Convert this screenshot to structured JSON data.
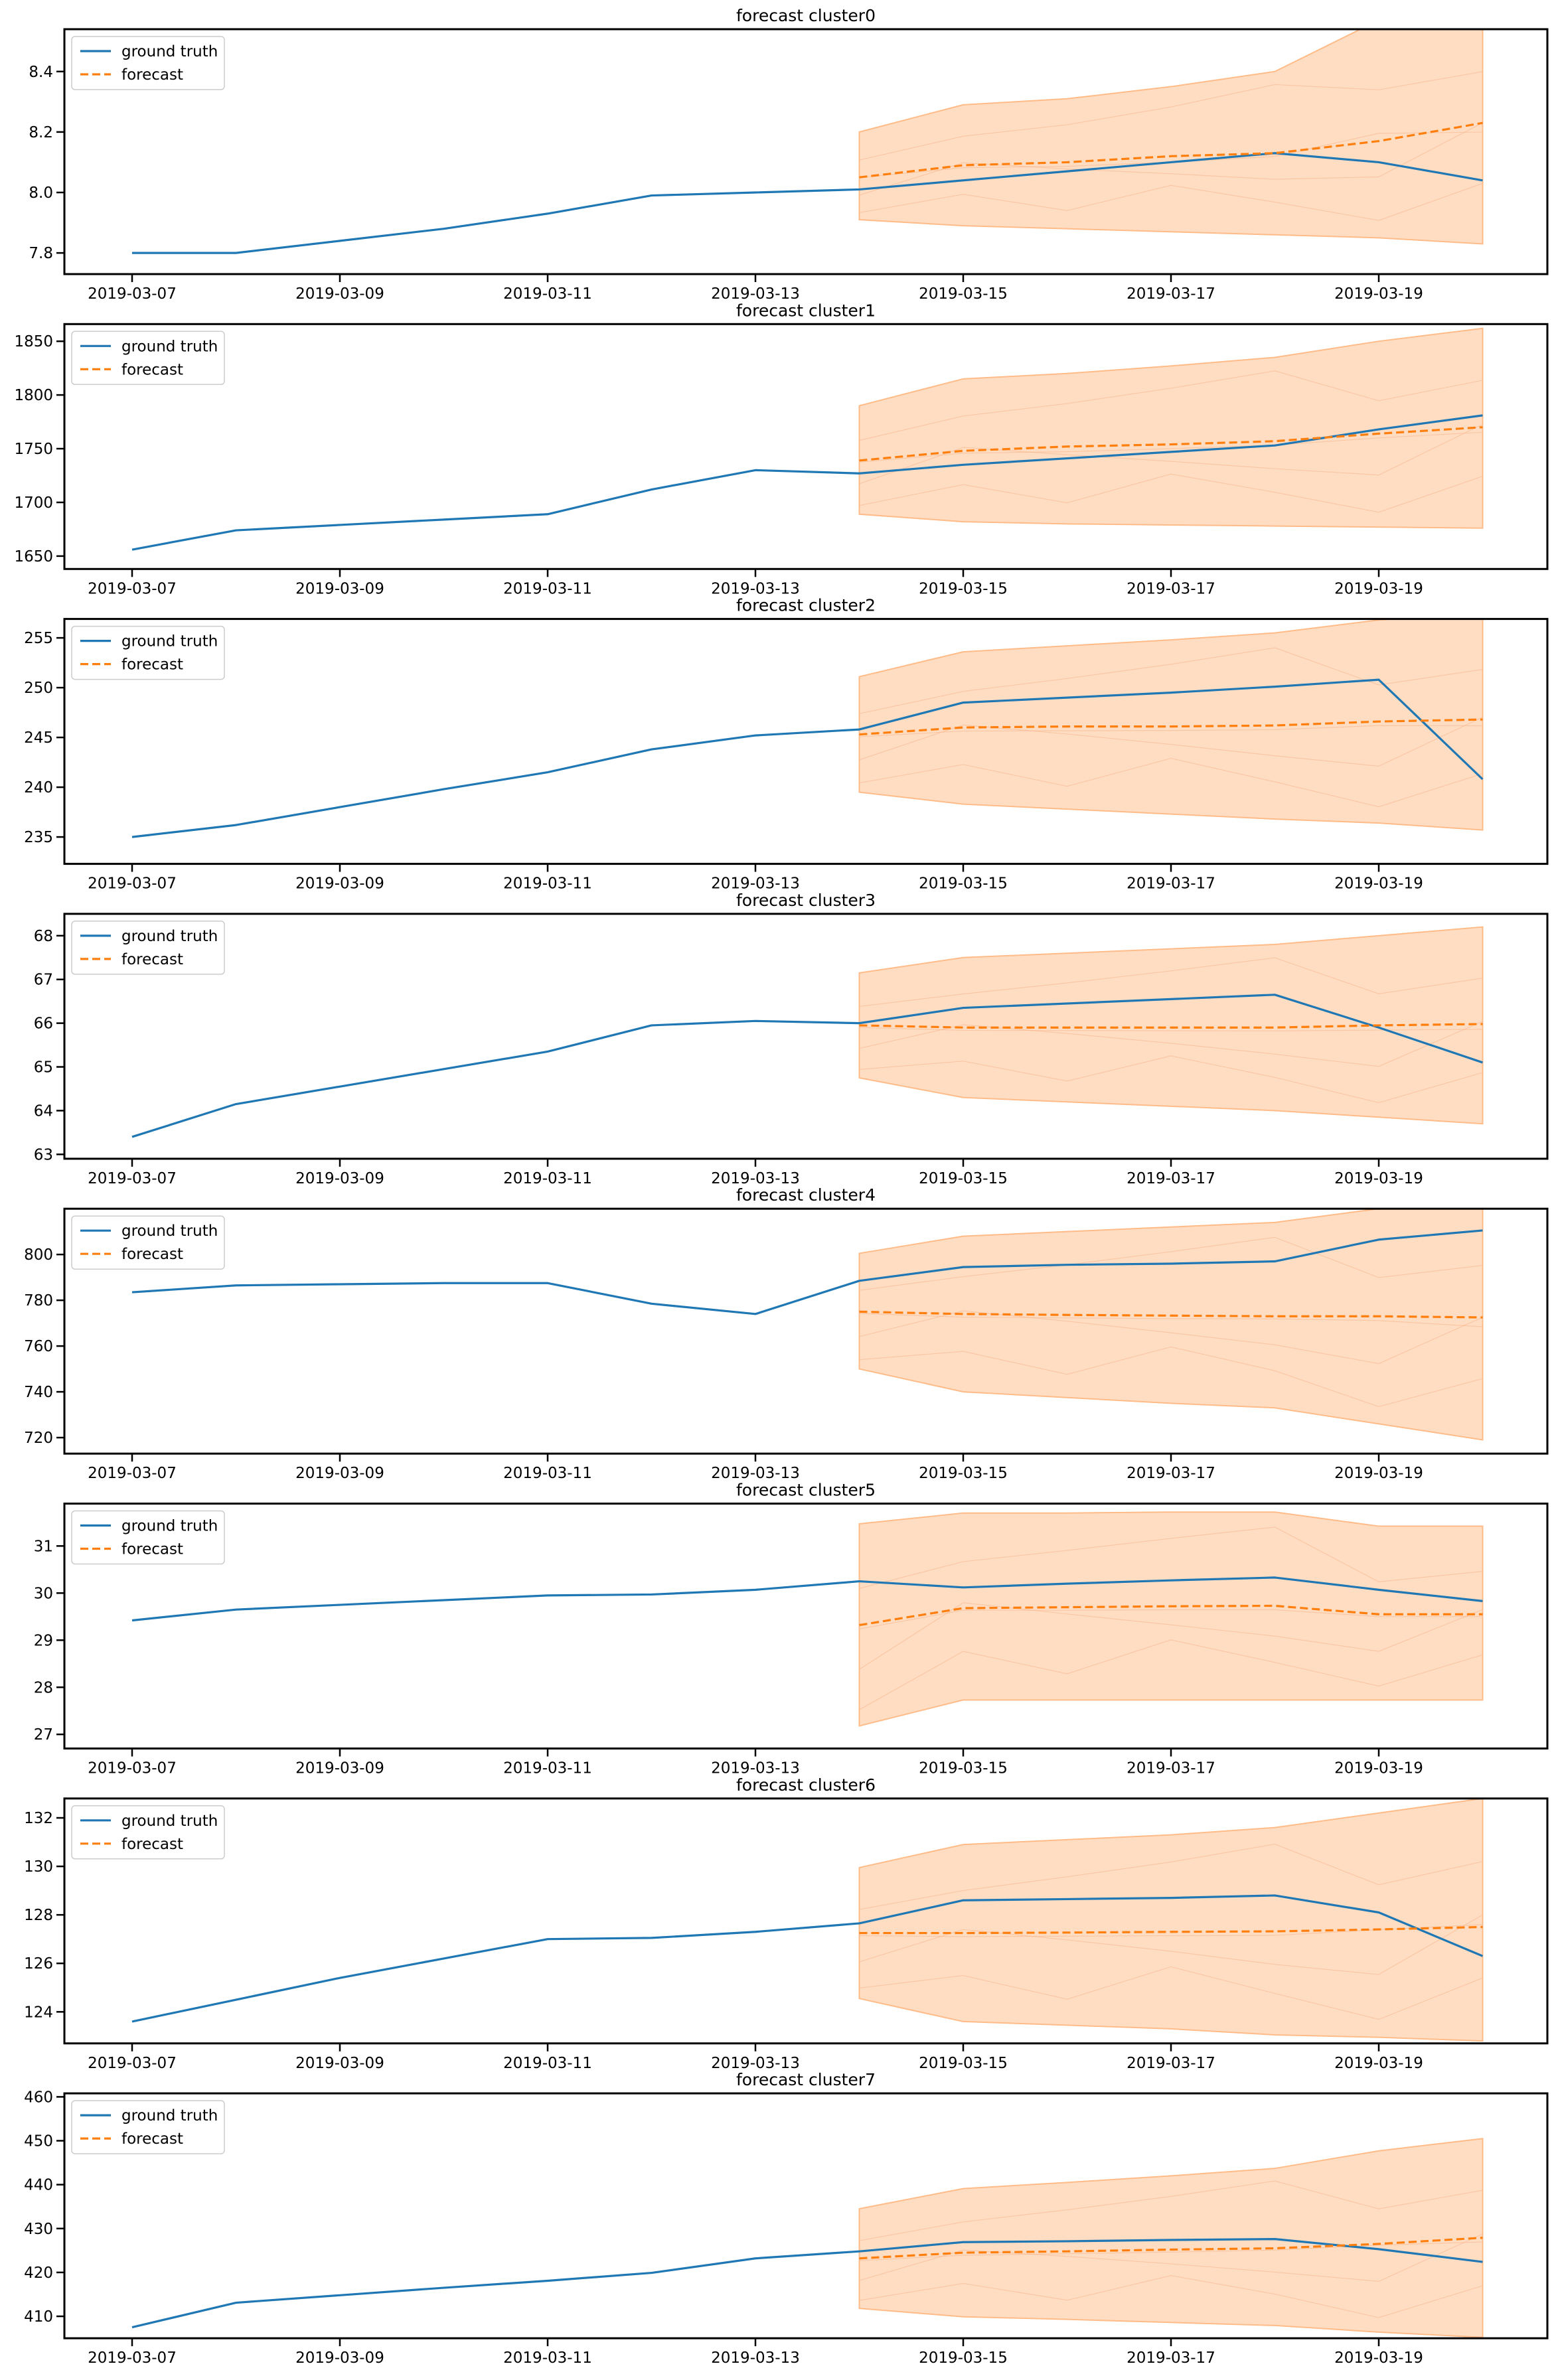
{
  "chart_data": [
    {
      "type": "line",
      "title": "forecast cluster0",
      "x_ticks": [
        "2019-03-07",
        "2019-03-09",
        "2019-03-11",
        "2019-03-13",
        "2019-03-15",
        "2019-03-17",
        "2019-03-19"
      ],
      "y_ticks": [
        "7.8",
        "8.0",
        "8.2",
        "8.4"
      ],
      "ylim": [
        7.73,
        8.54
      ],
      "legend": {
        "placement": "top-left",
        "entries": [
          "ground truth",
          "forecast"
        ]
      },
      "ground_truth": {
        "x": [
          "2019-03-07",
          "2019-03-08",
          "2019-03-09",
          "2019-03-10",
          "2019-03-11",
          "2019-03-12",
          "2019-03-13",
          "2019-03-14",
          "2019-03-15",
          "2019-03-16",
          "2019-03-17",
          "2019-03-18",
          "2019-03-19",
          "2019-03-20"
        ],
        "values": [
          7.8,
          7.8,
          7.84,
          7.88,
          7.93,
          7.99,
          8.0,
          8.01,
          8.04,
          8.07,
          8.1,
          8.13,
          8.1,
          8.04
        ]
      },
      "forecast": {
        "x": [
          "2019-03-14",
          "2019-03-15",
          "2019-03-16",
          "2019-03-17",
          "2019-03-18",
          "2019-03-19",
          "2019-03-20"
        ],
        "values": [
          8.05,
          8.09,
          8.1,
          8.12,
          8.13,
          8.17,
          8.23
        ]
      },
      "band_upper": [
        8.2,
        8.29,
        8.31,
        8.35,
        8.4,
        8.57,
        8.6
      ],
      "band_lower": [
        7.91,
        7.89,
        7.88,
        7.87,
        7.86,
        7.85,
        7.83
      ]
    },
    {
      "type": "line",
      "title": "forecast cluster1",
      "x_ticks": [
        "2019-03-07",
        "2019-03-09",
        "2019-03-11",
        "2019-03-13",
        "2019-03-15",
        "2019-03-17",
        "2019-03-19"
      ],
      "y_ticks": [
        "1650",
        "1700",
        "1750",
        "1800",
        "1850"
      ],
      "ylim": [
        1638,
        1866
      ],
      "legend": {
        "placement": "top-left",
        "entries": [
          "ground truth",
          "forecast"
        ]
      },
      "ground_truth": {
        "x": [
          "2019-03-07",
          "2019-03-08",
          "2019-03-09",
          "2019-03-10",
          "2019-03-11",
          "2019-03-12",
          "2019-03-13",
          "2019-03-14",
          "2019-03-15",
          "2019-03-16",
          "2019-03-17",
          "2019-03-18",
          "2019-03-19",
          "2019-03-20"
        ],
        "values": [
          1656,
          1674,
          1679,
          1684,
          1689,
          1712,
          1730,
          1727,
          1735,
          1741,
          1747,
          1753,
          1768,
          1781
        ]
      },
      "forecast": {
        "x": [
          "2019-03-14",
          "2019-03-15",
          "2019-03-16",
          "2019-03-17",
          "2019-03-18",
          "2019-03-19",
          "2019-03-20"
        ],
        "values": [
          1739,
          1748,
          1752,
          1754,
          1757,
          1764,
          1770
        ]
      },
      "band_upper": [
        1790,
        1815,
        1820,
        1827,
        1835,
        1850,
        1862
      ],
      "band_lower": [
        1689,
        1682,
        1680,
        1679,
        1678,
        1677,
        1676
      ]
    },
    {
      "type": "line",
      "title": "forecast cluster2",
      "x_ticks": [
        "2019-03-07",
        "2019-03-09",
        "2019-03-11",
        "2019-03-13",
        "2019-03-15",
        "2019-03-17",
        "2019-03-19"
      ],
      "y_ticks": [
        "235",
        "240",
        "245",
        "250",
        "255"
      ],
      "ylim": [
        232.3,
        256.9
      ],
      "legend": {
        "placement": "top-left",
        "entries": [
          "ground truth",
          "forecast"
        ]
      },
      "ground_truth": {
        "x": [
          "2019-03-07",
          "2019-03-08",
          "2019-03-09",
          "2019-03-10",
          "2019-03-11",
          "2019-03-12",
          "2019-03-13",
          "2019-03-14",
          "2019-03-15",
          "2019-03-16",
          "2019-03-17",
          "2019-03-18",
          "2019-03-19",
          "2019-03-20"
        ],
        "values": [
          235.0,
          236.2,
          238.0,
          239.8,
          241.5,
          243.8,
          245.2,
          245.8,
          248.5,
          249.0,
          249.5,
          250.1,
          250.8,
          240.8
        ]
      },
      "forecast": {
        "x": [
          "2019-03-14",
          "2019-03-15",
          "2019-03-16",
          "2019-03-17",
          "2019-03-18",
          "2019-03-19",
          "2019-03-20"
        ],
        "values": [
          245.3,
          246.0,
          246.1,
          246.1,
          246.2,
          246.6,
          246.8
        ]
      },
      "band_upper": [
        251.1,
        253.6,
        254.2,
        254.8,
        255.5,
        256.8,
        257.5
      ],
      "band_lower": [
        239.5,
        238.3,
        237.8,
        237.3,
        236.8,
        236.4,
        235.7
      ]
    },
    {
      "type": "line",
      "title": "forecast cluster3",
      "x_ticks": [
        "2019-03-07",
        "2019-03-09",
        "2019-03-11",
        "2019-03-13",
        "2019-03-15",
        "2019-03-17",
        "2019-03-19"
      ],
      "y_ticks": [
        "63",
        "64",
        "65",
        "66",
        "67",
        "68"
      ],
      "ylim": [
        62.9,
        68.5
      ],
      "legend": {
        "placement": "top-left",
        "entries": [
          "ground truth",
          "forecast"
        ]
      },
      "ground_truth": {
        "x": [
          "2019-03-07",
          "2019-03-08",
          "2019-03-09",
          "2019-03-10",
          "2019-03-11",
          "2019-03-12",
          "2019-03-13",
          "2019-03-14",
          "2019-03-15",
          "2019-03-16",
          "2019-03-17",
          "2019-03-18",
          "2019-03-19",
          "2019-03-20"
        ],
        "values": [
          63.4,
          64.15,
          64.55,
          64.95,
          65.35,
          65.95,
          66.05,
          66.0,
          66.35,
          66.45,
          66.55,
          66.65,
          65.9,
          65.1
        ]
      },
      "forecast": {
        "x": [
          "2019-03-14",
          "2019-03-15",
          "2019-03-16",
          "2019-03-17",
          "2019-03-18",
          "2019-03-19",
          "2019-03-20"
        ],
        "values": [
          65.95,
          65.9,
          65.9,
          65.9,
          65.9,
          65.95,
          65.98
        ]
      },
      "band_upper": [
        67.15,
        67.5,
        67.6,
        67.7,
        67.8,
        68.0,
        68.2
      ],
      "band_lower": [
        64.75,
        64.3,
        64.2,
        64.1,
        64.0,
        63.85,
        63.7
      ]
    },
    {
      "type": "line",
      "title": "forecast cluster4",
      "x_ticks": [
        "2019-03-07",
        "2019-03-09",
        "2019-03-11",
        "2019-03-13",
        "2019-03-15",
        "2019-03-17",
        "2019-03-19"
      ],
      "y_ticks": [
        "720",
        "740",
        "760",
        "780",
        "800"
      ],
      "ylim": [
        713,
        820
      ],
      "legend": {
        "placement": "top-left",
        "entries": [
          "ground truth",
          "forecast"
        ]
      },
      "ground_truth": {
        "x": [
          "2019-03-07",
          "2019-03-08",
          "2019-03-09",
          "2019-03-10",
          "2019-03-11",
          "2019-03-12",
          "2019-03-13",
          "2019-03-14",
          "2019-03-15",
          "2019-03-16",
          "2019-03-17",
          "2019-03-18",
          "2019-03-19",
          "2019-03-20"
        ],
        "values": [
          783.5,
          786.5,
          787,
          787.5,
          787.5,
          778.5,
          774.0,
          788.5,
          794.5,
          795.5,
          796,
          797,
          806.5,
          810.5
        ]
      },
      "forecast": {
        "x": [
          "2019-03-14",
          "2019-03-15",
          "2019-03-16",
          "2019-03-17",
          "2019-03-18",
          "2019-03-19",
          "2019-03-20"
        ],
        "values": [
          775,
          774,
          773.6,
          773.3,
          773,
          773,
          772.5
        ]
      },
      "band_upper": [
        800.5,
        808,
        810,
        812,
        814,
        820,
        822
      ],
      "band_lower": [
        750,
        740,
        737.5,
        735,
        733,
        726,
        719
      ]
    },
    {
      "type": "line",
      "title": "forecast cluster5",
      "x_ticks": [
        "2019-03-07",
        "2019-03-09",
        "2019-03-11",
        "2019-03-13",
        "2019-03-15",
        "2019-03-17",
        "2019-03-19"
      ],
      "y_ticks": [
        "27",
        "28",
        "29",
        "30",
        "31"
      ],
      "ylim": [
        26.7,
        31.9
      ],
      "legend": {
        "placement": "top-left",
        "entries": [
          "ground truth",
          "forecast"
        ]
      },
      "ground_truth": {
        "x": [
          "2019-03-07",
          "2019-03-08",
          "2019-03-09",
          "2019-03-10",
          "2019-03-11",
          "2019-03-12",
          "2019-03-13",
          "2019-03-14",
          "2019-03-15",
          "2019-03-16",
          "2019-03-17",
          "2019-03-18",
          "2019-03-19",
          "2019-03-20"
        ],
        "values": [
          29.42,
          29.65,
          29.75,
          29.85,
          29.95,
          29.97,
          30.07,
          30.25,
          30.12,
          30.2,
          30.27,
          30.33,
          30.07,
          29.83
        ]
      },
      "forecast": {
        "x": [
          "2019-03-14",
          "2019-03-15",
          "2019-03-16",
          "2019-03-17",
          "2019-03-18",
          "2019-03-19",
          "2019-03-20"
        ],
        "values": [
          29.32,
          29.68,
          29.7,
          29.72,
          29.73,
          29.55,
          29.55
        ]
      },
      "band_upper": [
        31.47,
        31.7,
        31.7,
        31.72,
        31.72,
        31.42,
        31.42
      ],
      "band_lower": [
        27.18,
        27.73,
        27.73,
        27.73,
        27.73,
        27.73,
        27.73
      ]
    },
    {
      "type": "line",
      "title": "forecast cluster6",
      "x_ticks": [
        "2019-03-07",
        "2019-03-09",
        "2019-03-11",
        "2019-03-13",
        "2019-03-15",
        "2019-03-17",
        "2019-03-19"
      ],
      "y_ticks": [
        "124",
        "126",
        "128",
        "130",
        "132"
      ],
      "ylim": [
        122.7,
        132.8
      ],
      "legend": {
        "placement": "top-left",
        "entries": [
          "ground truth",
          "forecast"
        ]
      },
      "ground_truth": {
        "x": [
          "2019-03-07",
          "2019-03-08",
          "2019-03-09",
          "2019-03-10",
          "2019-03-11",
          "2019-03-12",
          "2019-03-13",
          "2019-03-14",
          "2019-03-15",
          "2019-03-16",
          "2019-03-17",
          "2019-03-18",
          "2019-03-19",
          "2019-03-20"
        ],
        "values": [
          123.6,
          124.5,
          125.4,
          126.2,
          127.0,
          127.05,
          127.3,
          127.65,
          128.6,
          128.65,
          128.7,
          128.8,
          128.1,
          126.3
        ]
      },
      "forecast": {
        "x": [
          "2019-03-14",
          "2019-03-15",
          "2019-03-16",
          "2019-03-17",
          "2019-03-18",
          "2019-03-19",
          "2019-03-20"
        ],
        "values": [
          127.25,
          127.25,
          127.27,
          127.3,
          127.32,
          127.4,
          127.5
        ]
      },
      "band_upper": [
        129.95,
        130.9,
        131.1,
        131.3,
        131.6,
        132.2,
        132.8
      ],
      "band_lower": [
        124.55,
        123.6,
        123.45,
        123.3,
        123.05,
        122.95,
        122.8
      ]
    },
    {
      "type": "line",
      "title": "forecast cluster7",
      "x_ticks": [
        "2019-03-07",
        "2019-03-09",
        "2019-03-11",
        "2019-03-13",
        "2019-03-15",
        "2019-03-17",
        "2019-03-19"
      ],
      "y_ticks": [
        "410",
        "420",
        "430",
        "440",
        "450",
        "460"
      ],
      "ylim": [
        405,
        460.8
      ],
      "legend": {
        "placement": "top-left",
        "entries": [
          "ground truth",
          "forecast"
        ]
      },
      "ground_truth": {
        "x": [
          "2019-03-07",
          "2019-03-08",
          "2019-03-09",
          "2019-03-10",
          "2019-03-11",
          "2019-03-12",
          "2019-03-13",
          "2019-03-14",
          "2019-03-15",
          "2019-03-16",
          "2019-03-17",
          "2019-03-18",
          "2019-03-19",
          "2019-03-20"
        ],
        "values": [
          407.5,
          413.1,
          414.8,
          416.5,
          418.1,
          419.9,
          423.2,
          424.8,
          426.9,
          427.1,
          427.4,
          427.6,
          425.3,
          422.4
        ]
      },
      "forecast": {
        "x": [
          "2019-03-14",
          "2019-03-15",
          "2019-03-16",
          "2019-03-17",
          "2019-03-18",
          "2019-03-19",
          "2019-03-20"
        ],
        "values": [
          423.2,
          424.5,
          424.8,
          425.2,
          425.5,
          426.5,
          427.9
        ]
      },
      "band_upper": [
        434.5,
        439.1,
        440.5,
        442.0,
        443.7,
        447.7,
        450.5
      ],
      "band_lower": [
        411.8,
        409.9,
        409.3,
        408.6,
        407.9,
        406.4,
        405.2
      ]
    }
  ],
  "colors": {
    "ground_truth": "#1f77b4",
    "forecast": "#ff7f0e",
    "band": "#ffbb88",
    "axes": "#000000"
  }
}
